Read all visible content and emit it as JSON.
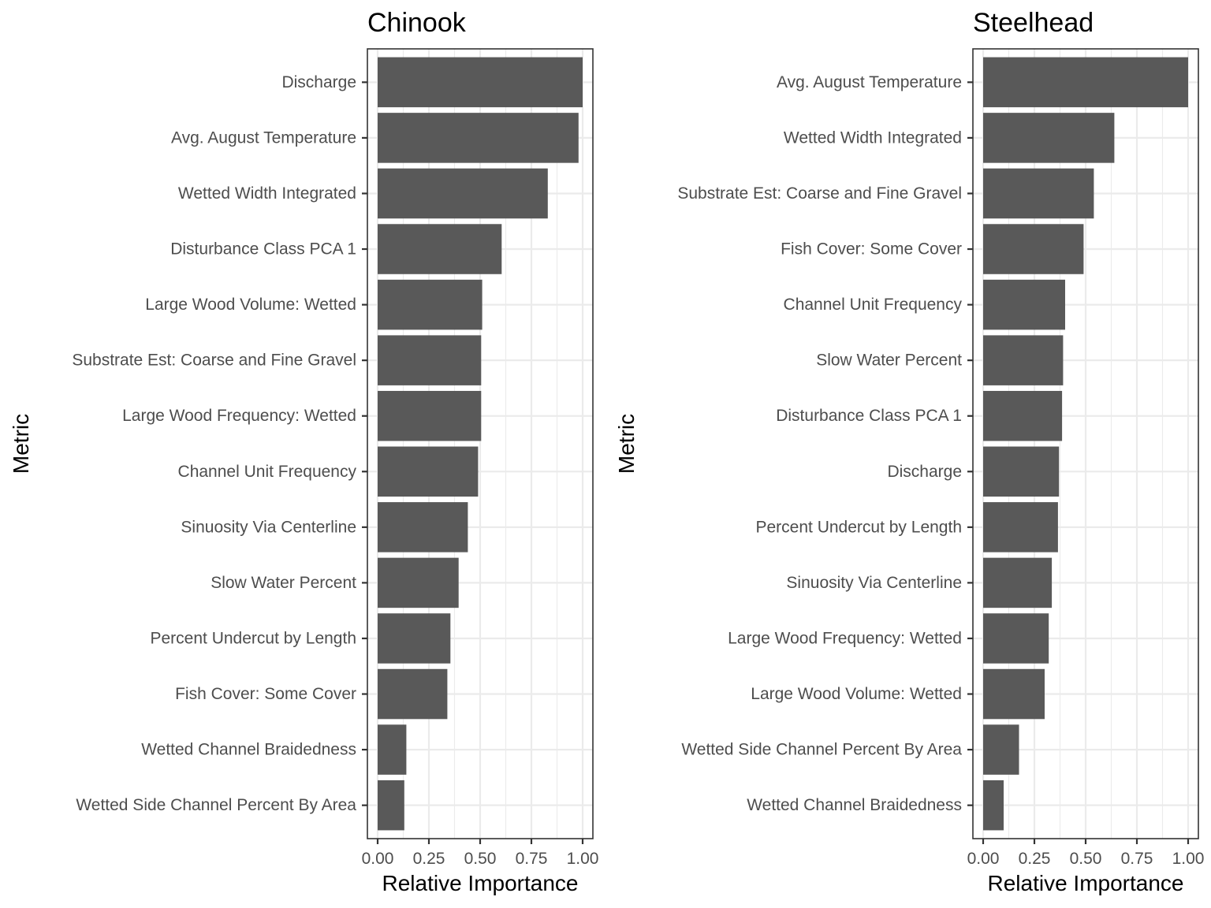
{
  "chart_data": [
    {
      "type": "bar",
      "orientation": "horizontal",
      "title": "Chinook",
      "xlabel": "Relative Importance",
      "ylabel": "Metric",
      "xlim": [
        0,
        1
      ],
      "xticks": [
        "0.00",
        "0.25",
        "0.50",
        "0.75",
        "1.00"
      ],
      "xtick_values": [
        0,
        0.25,
        0.5,
        0.75,
        1.0
      ],
      "grid": true,
      "bar_color": "#595959",
      "categories": [
        "Discharge",
        "Avg. August Temperature",
        "Wetted Width Integrated",
        "Disturbance Class PCA 1",
        "Large Wood Volume: Wetted",
        "Substrate Est: Coarse and Fine Gravel",
        "Large Wood Frequency: Wetted",
        "Channel Unit Frequency",
        "Sinuosity Via Centerline",
        "Slow Water Percent",
        "Percent Undercut by Length",
        "Fish Cover: Some Cover",
        "Wetted Channel Braidedness",
        "Wetted Side Channel Percent By Area"
      ],
      "values": [
        1.0,
        0.98,
        0.83,
        0.605,
        0.51,
        0.505,
        0.505,
        0.49,
        0.44,
        0.395,
        0.355,
        0.34,
        0.14,
        0.13
      ]
    },
    {
      "type": "bar",
      "orientation": "horizontal",
      "title": "Steelhead",
      "xlabel": "Relative Importance",
      "ylabel": "Metric",
      "xlim": [
        0,
        1
      ],
      "xticks": [
        "0.00",
        "0.25",
        "0.50",
        "0.75",
        "1.00"
      ],
      "xtick_values": [
        0,
        0.25,
        0.5,
        0.75,
        1.0
      ],
      "grid": true,
      "bar_color": "#595959",
      "categories": [
        "Avg. August Temperature",
        "Wetted Width Integrated",
        "Substrate Est: Coarse and Fine Gravel",
        "Fish Cover: Some Cover",
        "Channel Unit Frequency",
        "Slow Water Percent",
        "Disturbance Class PCA 1",
        "Discharge",
        "Percent Undercut by Length",
        "Sinuosity Via Centerline",
        "Large Wood Frequency: Wetted",
        "Large Wood Volume: Wetted",
        "Wetted Side Channel Percent By Area",
        "Wetted Channel Braidedness"
      ],
      "values": [
        1.0,
        0.64,
        0.54,
        0.49,
        0.4,
        0.39,
        0.385,
        0.37,
        0.365,
        0.335,
        0.32,
        0.3,
        0.175,
        0.1
      ]
    }
  ]
}
